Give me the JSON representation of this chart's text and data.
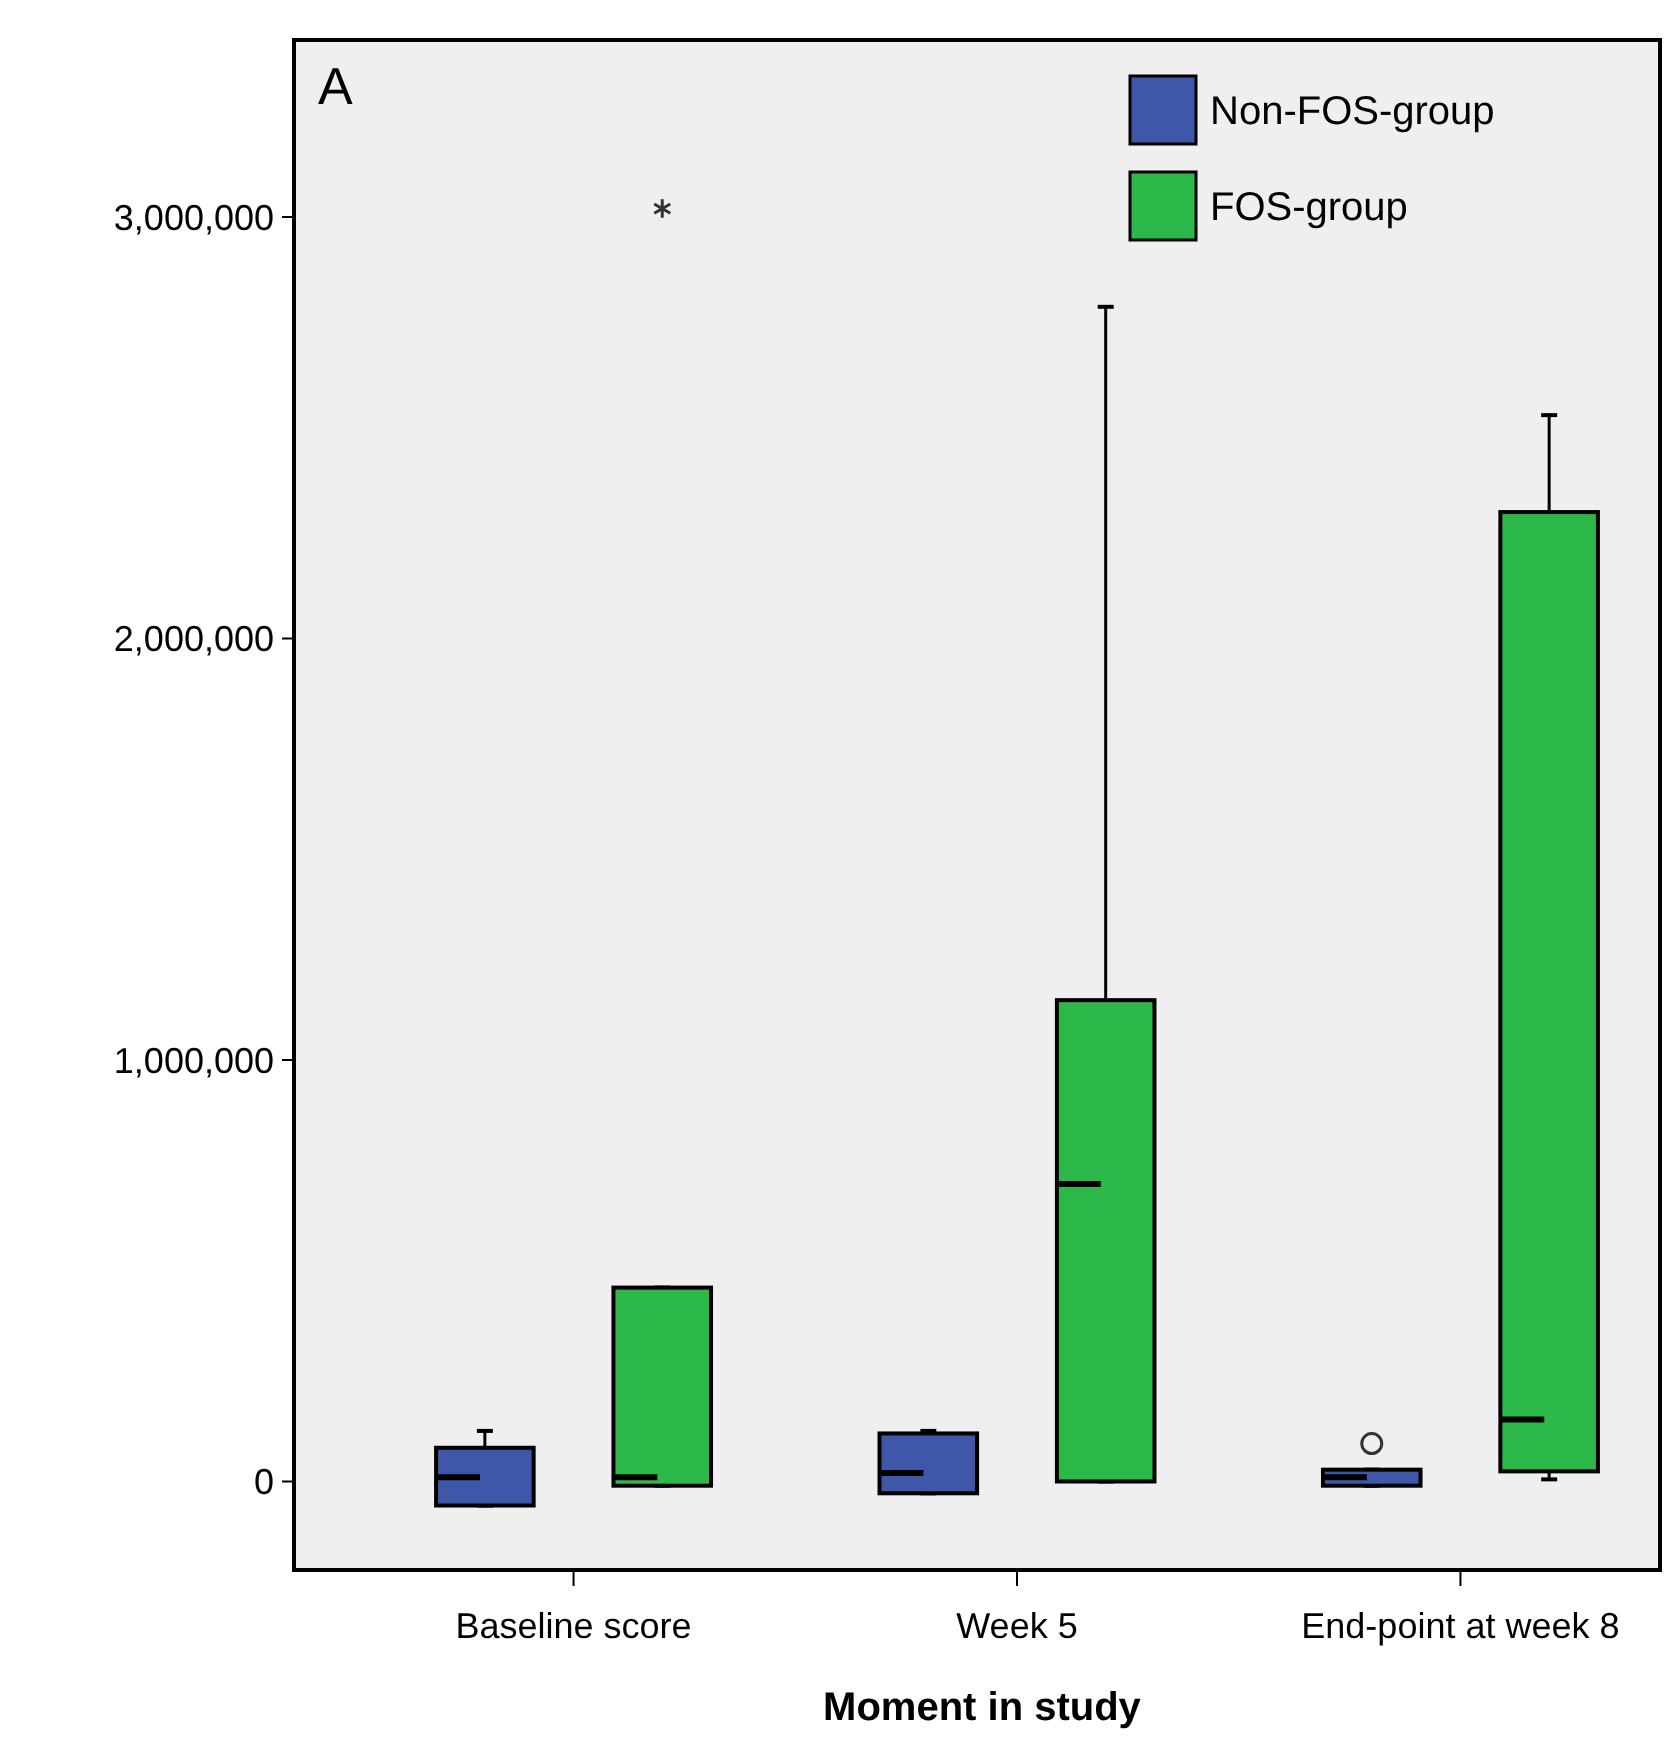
{
  "chart_data": {
    "type": "box",
    "annotations": [
      "A"
    ],
    "xlabel": "Moment in study",
    "categories": [
      "Baseline score",
      "Week 5",
      "End-point at week 8"
    ],
    "ylim": [
      -210000,
      3420000
    ],
    "yticks": [
      {
        "value": 0,
        "label": "0"
      },
      {
        "value": 1000000,
        "label": "1,000,000"
      },
      {
        "value": 2000000,
        "label": "2,000,000"
      },
      {
        "value": 3000000,
        "label": "3,000,000"
      }
    ],
    "legend": "top right",
    "grid": false,
    "series": [
      {
        "name": "Non-FOS-group",
        "color": "#3f57a8",
        "boxes": [
          {
            "low": -57000,
            "q1": -57000,
            "median": 10000,
            "q3": 80000,
            "high": 120000
          },
          {
            "low": -28000,
            "q1": -28000,
            "median": 20000,
            "q3": 114000,
            "high": 120000
          },
          {
            "low": -10000,
            "q1": -10000,
            "median": 10000,
            "q3": 28000,
            "high": 28000,
            "outliers": [
              90000
            ]
          }
        ]
      },
      {
        "name": "FOS-group",
        "color": "#2db84a",
        "boxes": [
          {
            "low": -10000,
            "q1": -10000,
            "median": 10000,
            "q3": 460000,
            "high": 460000,
            "outliers": [
              3020000
            ]
          },
          {
            "low": 0,
            "q1": 0,
            "median": 706000,
            "q3": 1142000,
            "high": 2787000
          },
          {
            "low": 5000,
            "q1": 24000,
            "median": 147000,
            "q3": 2300000,
            "high": 2530000
          }
        ]
      }
    ]
  }
}
